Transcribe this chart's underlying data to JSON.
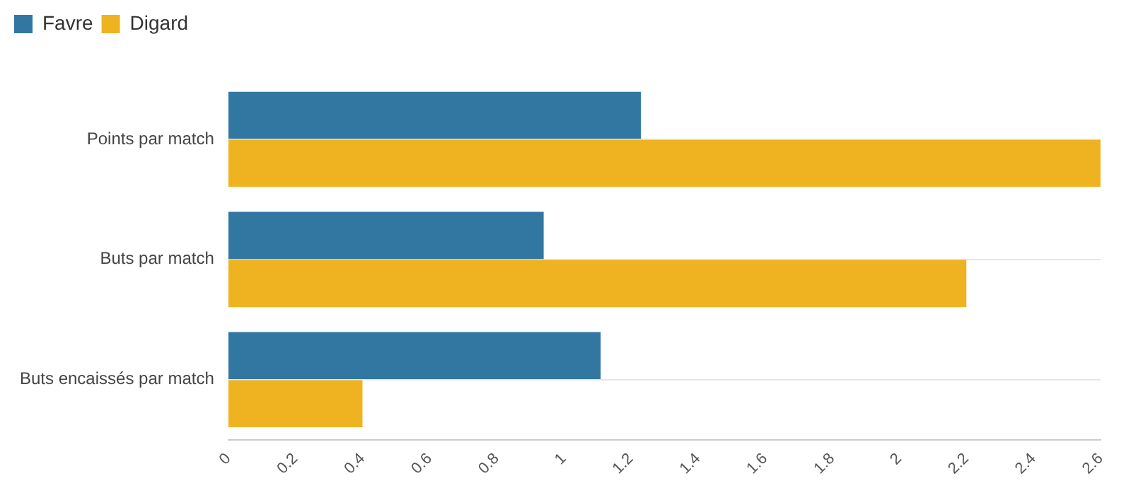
{
  "chart_data": {
    "type": "bar",
    "orientation": "horizontal",
    "categories": [
      "Points par match",
      "Buts par match",
      "Buts encaissés par match"
    ],
    "series": [
      {
        "name": "Favre",
        "color": "#3277a2",
        "values": [
          1.23,
          0.94,
          1.11
        ]
      },
      {
        "name": "Digard",
        "color": "#efb321",
        "values": [
          2.6,
          2.2,
          0.4
        ]
      }
    ],
    "xlim": [
      0,
      2.6
    ],
    "xticks": [
      0,
      0.2,
      0.4,
      0.6,
      0.8,
      1,
      1.2,
      1.4,
      1.6,
      1.8,
      2,
      2.2,
      2.4,
      2.6
    ],
    "grid": "y",
    "legend": "top left"
  }
}
